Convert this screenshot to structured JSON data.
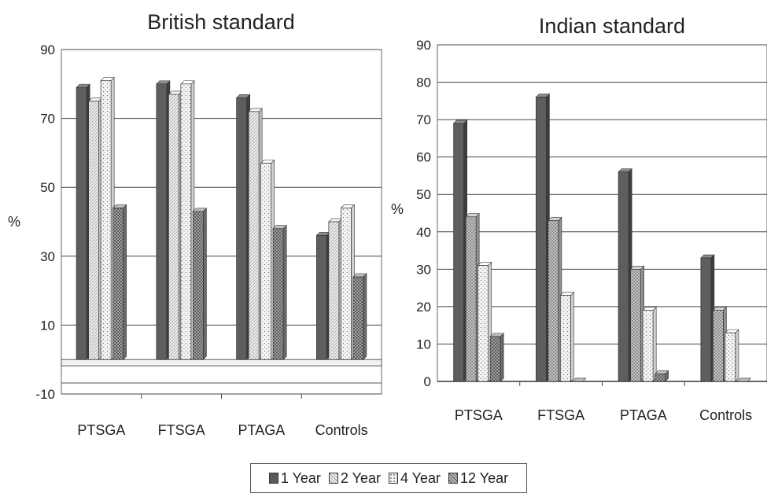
{
  "legend": {
    "items": [
      {
        "label": "1 Year",
        "color": "#5a5a5a"
      },
      {
        "label": "2 Year",
        "color": "#e6e6e6"
      },
      {
        "label": "4 Year",
        "color": "#f4f4f4"
      },
      {
        "label": "12 Year",
        "color": "#8f8f8f"
      }
    ]
  },
  "chart_data": [
    {
      "type": "bar",
      "title": "British standard",
      "ylabel": "%",
      "xlabel": "",
      "categories": [
        "PTSGA",
        "FTSGA",
        "PTAGA",
        "Controls"
      ],
      "ylim": [
        -10,
        90
      ],
      "yticks": [
        -10,
        10,
        30,
        50,
        70,
        90
      ],
      "grid": true,
      "style": "3d-clustered-column",
      "series": [
        {
          "name": "1 Year",
          "values": [
            79,
            80,
            76,
            36
          ]
        },
        {
          "name": "2 Year",
          "values": [
            75,
            77,
            72,
            40
          ]
        },
        {
          "name": "4 Year",
          "values": [
            81,
            80,
            57,
            44
          ]
        },
        {
          "name": "12 Year",
          "values": [
            44,
            43,
            38,
            24
          ]
        }
      ]
    },
    {
      "type": "bar",
      "title": "Indian standard",
      "ylabel": "%",
      "xlabel": "",
      "categories": [
        "PTSGA",
        "FTSGA",
        "PTAGA",
        "Controls"
      ],
      "ylim": [
        0,
        90
      ],
      "yticks": [
        0,
        10,
        20,
        30,
        40,
        50,
        60,
        70,
        80,
        90
      ],
      "grid": true,
      "style": "3d-clustered-column",
      "series": [
        {
          "name": "1 Year",
          "values": [
            69,
            76,
            56,
            33
          ]
        },
        {
          "name": "2 Year",
          "values": [
            44,
            43,
            30,
            19
          ]
        },
        {
          "name": "4 Year",
          "values": [
            31,
            23,
            19,
            13
          ]
        },
        {
          "name": "12 Year",
          "values": [
            12,
            0,
            2,
            0
          ]
        }
      ]
    }
  ]
}
